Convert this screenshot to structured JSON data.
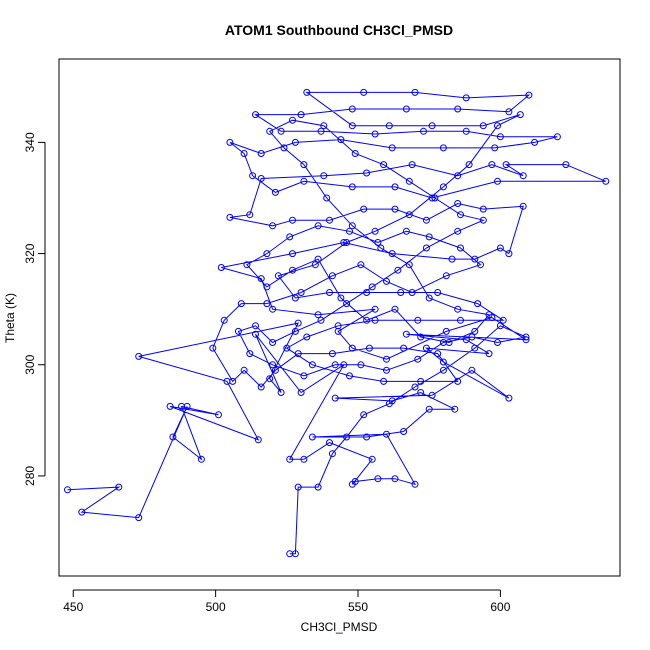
{
  "chart_data": {
    "type": "line",
    "title": "ATOM1 Southbound CH3Cl_PMSD",
    "xlabel": "CH3Cl_PMSD",
    "ylabel": "Theta (K)",
    "xlim": [
      445,
      642
    ],
    "ylim": [
      262,
      355
    ],
    "x_ticks": [
      450,
      500,
      550,
      600
    ],
    "y_ticks": [
      280,
      300,
      320,
      340
    ],
    "grid": false,
    "legend": "none",
    "series": [
      {
        "color": "#0000ff",
        "marker": "open-circle",
        "points": [
          [
            448,
            277.5
          ],
          [
            466,
            278
          ],
          [
            453,
            273.5
          ],
          [
            473,
            272.5
          ],
          [
            490,
            292.5
          ],
          [
            485,
            287
          ],
          [
            495,
            283
          ],
          [
            488,
            292.5
          ],
          [
            501,
            291
          ],
          [
            484,
            292.5
          ],
          [
            515,
            286.5
          ],
          [
            504,
            297
          ],
          [
            473,
            301.5
          ],
          [
            529,
            307.5
          ],
          [
            519,
            297.5
          ],
          [
            523,
            295
          ],
          [
            514,
            305.5
          ],
          [
            530,
            295
          ],
          [
            545,
            300
          ],
          [
            526,
            283
          ],
          [
            531,
            283
          ],
          [
            540,
            286
          ],
          [
            555,
            283
          ],
          [
            548,
            278.5
          ],
          [
            549,
            279
          ],
          [
            557,
            279.5
          ],
          [
            563,
            279.5
          ],
          [
            570,
            278.5
          ],
          [
            560,
            287.5
          ],
          [
            534,
            287
          ],
          [
            553,
            287
          ],
          [
            566,
            288
          ],
          [
            575,
            292
          ],
          [
            584,
            292
          ],
          [
            572,
            295
          ],
          [
            562,
            293.5
          ],
          [
            542,
            294
          ],
          [
            576,
            294.5
          ],
          [
            590,
            299
          ],
          [
            603,
            294
          ],
          [
            580,
            300.5
          ],
          [
            574,
            303
          ],
          [
            596,
            302
          ],
          [
            588,
            304.5
          ],
          [
            567,
            305.5
          ],
          [
            609,
            304.5
          ],
          [
            597,
            308.5
          ],
          [
            581,
            306
          ],
          [
            560,
            301
          ],
          [
            548,
            303
          ],
          [
            543,
            306
          ],
          [
            556,
            310
          ],
          [
            536,
            309
          ],
          [
            520,
            310
          ],
          [
            516,
            315.5
          ],
          [
            502,
            317.5
          ],
          [
            527,
            320
          ],
          [
            545,
            322
          ],
          [
            562,
            320
          ],
          [
            583,
            319
          ],
          [
            591,
            319
          ],
          [
            600,
            321
          ],
          [
            603,
            320
          ],
          [
            608,
            328.5
          ],
          [
            594,
            328
          ],
          [
            585,
            329
          ],
          [
            574,
            326
          ],
          [
            563,
            328
          ],
          [
            552,
            328
          ],
          [
            540,
            326
          ],
          [
            527,
            326
          ],
          [
            520,
            325
          ],
          [
            505,
            326.5
          ],
          [
            512,
            327
          ],
          [
            516,
            333.5
          ],
          [
            538,
            334
          ],
          [
            553,
            334.5
          ],
          [
            569,
            336
          ],
          [
            585,
            334
          ],
          [
            597,
            336
          ],
          [
            608,
            334
          ],
          [
            602,
            336
          ],
          [
            623,
            336
          ],
          [
            637,
            333
          ],
          [
            599,
            333
          ],
          [
            576,
            330
          ],
          [
            563,
            332
          ],
          [
            548,
            332
          ],
          [
            531,
            333
          ],
          [
            521,
            331
          ],
          [
            513,
            334
          ],
          [
            510,
            338
          ],
          [
            505,
            340
          ],
          [
            516,
            338
          ],
          [
            528,
            340
          ],
          [
            544,
            340.5
          ],
          [
            562,
            339
          ],
          [
            580,
            339
          ],
          [
            598,
            339
          ],
          [
            612,
            340
          ],
          [
            620,
            341
          ],
          [
            600,
            341
          ],
          [
            588,
            342
          ],
          [
            573,
            342
          ],
          [
            556,
            341.5
          ],
          [
            537,
            342
          ],
          [
            523,
            342
          ],
          [
            514,
            345
          ],
          [
            530,
            345
          ],
          [
            548,
            346
          ],
          [
            567,
            346
          ],
          [
            585,
            346
          ],
          [
            603,
            345.5
          ],
          [
            610,
            348.5
          ],
          [
            588,
            348
          ],
          [
            570,
            349
          ],
          [
            552,
            349
          ],
          [
            532,
            349
          ],
          [
            548,
            343
          ],
          [
            561,
            343
          ],
          [
            576,
            343
          ],
          [
            594,
            343
          ],
          [
            607,
            345
          ],
          [
            599,
            343
          ],
          [
            589,
            336
          ],
          [
            580,
            332
          ],
          [
            568,
            327
          ],
          [
            556,
            324
          ],
          [
            546,
            322
          ],
          [
            535,
            318
          ],
          [
            522,
            316
          ],
          [
            528,
            312
          ],
          [
            540,
            313
          ],
          [
            553,
            313
          ],
          [
            565,
            313
          ],
          [
            578,
            313
          ],
          [
            592,
            311
          ],
          [
            601,
            308
          ],
          [
            586,
            308
          ],
          [
            571,
            308
          ],
          [
            556,
            308
          ],
          [
            543,
            307
          ],
          [
            532,
            305
          ],
          [
            525,
            303
          ],
          [
            534,
            300
          ],
          [
            547,
            298
          ],
          [
            559,
            297
          ],
          [
            572,
            297
          ],
          [
            585,
            297
          ],
          [
            578,
            302
          ],
          [
            566,
            303
          ],
          [
            554,
            303
          ],
          [
            541,
            302
          ],
          [
            529,
            302
          ],
          [
            521,
            299
          ],
          [
            516,
            296
          ],
          [
            510,
            299
          ],
          [
            506,
            297
          ],
          [
            499,
            303
          ],
          [
            503,
            308
          ],
          [
            509,
            311
          ],
          [
            518,
            311
          ],
          [
            530,
            313
          ],
          [
            541,
            316
          ],
          [
            551,
            318
          ],
          [
            560,
            315
          ],
          [
            569,
            313
          ],
          [
            581,
            316
          ],
          [
            593,
            318
          ],
          [
            586,
            321
          ],
          [
            575,
            323
          ],
          [
            567,
            324
          ],
          [
            557,
            322
          ],
          [
            547,
            324
          ],
          [
            536,
            325
          ],
          [
            526,
            323
          ],
          [
            518,
            320
          ],
          [
            511,
            318
          ],
          [
            518,
            314
          ],
          [
            527,
            317
          ],
          [
            536,
            319
          ],
          [
            544,
            312
          ],
          [
            553,
            308
          ],
          [
            563,
            310
          ],
          [
            572,
            305
          ],
          [
            582,
            304
          ],
          [
            591,
            306
          ],
          [
            596,
            309
          ],
          [
            585,
            310
          ],
          [
            575,
            312
          ],
          [
            568,
            318
          ],
          [
            558,
            321
          ],
          [
            548,
            325
          ],
          [
            539,
            330
          ],
          [
            531,
            336
          ],
          [
            524,
            339
          ],
          [
            519,
            342
          ],
          [
            527,
            344
          ],
          [
            538,
            343
          ],
          [
            549,
            338
          ],
          [
            559,
            336
          ],
          [
            568,
            333
          ],
          [
            577,
            330
          ],
          [
            586,
            327
          ],
          [
            594,
            326
          ],
          [
            585,
            324
          ],
          [
            574,
            321
          ],
          [
            564,
            317
          ],
          [
            555,
            314
          ],
          [
            546,
            311
          ],
          [
            537,
            308
          ],
          [
            528,
            306
          ],
          [
            520,
            304
          ],
          [
            514,
            307
          ],
          [
            508,
            306
          ],
          [
            512,
            302
          ],
          [
            520,
            300
          ],
          [
            531,
            298
          ],
          [
            542,
            300
          ],
          [
            551,
            300
          ],
          [
            560,
            299
          ],
          [
            571,
            301
          ],
          [
            580,
            304
          ],
          [
            590,
            305
          ],
          [
            599,
            304
          ],
          [
            609,
            305
          ],
          [
            600,
            307
          ],
          [
            591,
            303
          ],
          [
            580,
            299
          ],
          [
            570,
            296
          ],
          [
            561,
            293
          ],
          [
            552,
            291
          ],
          [
            546,
            287
          ],
          [
            541,
            284
          ],
          [
            536,
            278
          ],
          [
            529,
            278
          ],
          [
            528,
            266
          ],
          [
            526,
            266
          ]
        ]
      }
    ]
  }
}
